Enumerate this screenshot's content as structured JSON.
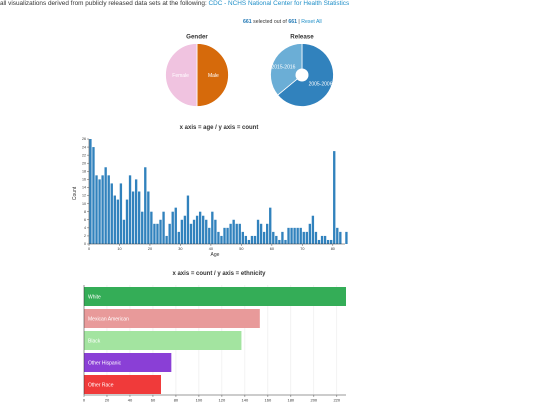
{
  "header": {
    "intro_text": "all visualizations derived from publicly released data sets at the following:",
    "source_link": "CDC - NCHS National Center for Health Statistics"
  },
  "selection": {
    "selected": "661",
    "middle_text": "selected out of",
    "total": "661",
    "separator": "|",
    "reset_label": "Reset All"
  },
  "colors": {
    "male": "#d66a0b",
    "female": "#f0c3e0",
    "release_2005": "#3182bd",
    "release_2015": "#6baed6",
    "bars": "#3182bd",
    "white": "#34ad57",
    "mexican_american": "#e89a9a",
    "black": "#a3e4a0",
    "other_hispanic": "#8a3fd6",
    "other_race": "#f03a3a"
  },
  "chart_data": [
    {
      "type": "pie",
      "title": "Gender",
      "slices": [
        {
          "label": "Male",
          "value": 0.5
        },
        {
          "label": "Female",
          "value": 0.5
        }
      ]
    },
    {
      "type": "pie",
      "title": "Release",
      "donut": true,
      "slices": [
        {
          "label": "2005-2006",
          "value": 0.64
        },
        {
          "label": "2015-2016",
          "value": 0.36
        }
      ]
    },
    {
      "type": "bar",
      "title": "x axis = age / y axis = count",
      "xlabel": "Age",
      "ylabel": "Count",
      "xlim": [
        0,
        84
      ],
      "ylim": [
        0,
        26
      ],
      "xticks": [
        0,
        10,
        20,
        30,
        40,
        50,
        60,
        70,
        80
      ],
      "yticks": [
        0,
        2,
        4,
        6,
        8,
        10,
        12,
        14,
        16,
        18,
        20,
        22,
        24,
        26
      ],
      "x": [
        0,
        1,
        2,
        3,
        4,
        5,
        6,
        7,
        8,
        9,
        10,
        11,
        12,
        13,
        14,
        15,
        16,
        17,
        18,
        19,
        20,
        21,
        22,
        23,
        24,
        25,
        26,
        27,
        28,
        29,
        30,
        31,
        32,
        33,
        34,
        35,
        36,
        37,
        38,
        39,
        40,
        41,
        42,
        43,
        44,
        45,
        46,
        47,
        48,
        49,
        50,
        51,
        52,
        53,
        54,
        55,
        56,
        57,
        58,
        59,
        60,
        61,
        62,
        63,
        64,
        65,
        66,
        67,
        68,
        69,
        70,
        71,
        72,
        73,
        74,
        75,
        76,
        77,
        78,
        79,
        80,
        81,
        82,
        83,
        84
      ],
      "values": [
        26,
        24,
        17,
        16,
        17,
        19,
        17,
        15,
        12,
        11,
        15,
        6,
        11,
        17,
        13,
        16,
        13,
        8,
        19,
        13,
        8,
        5,
        5,
        6,
        8,
        2,
        5,
        8,
        9,
        3,
        6,
        7,
        12,
        5,
        6,
        7,
        8,
        7,
        6,
        4,
        8,
        6,
        3,
        2,
        4,
        4,
        5,
        6,
        5,
        5,
        3,
        2,
        1,
        2,
        2,
        6,
        5,
        3,
        5,
        9,
        3,
        2,
        1,
        3,
        1,
        4,
        4,
        4,
        4,
        4,
        3,
        3,
        5,
        7,
        3,
        1,
        2,
        2,
        1,
        1,
        23,
        4,
        3,
        0,
        3
      ]
    },
    {
      "type": "bar",
      "orientation": "horizontal",
      "title": "x axis = count / y axis = ethnicity",
      "categories": [
        "White",
        "Mexican American",
        "Black",
        "Other Hispanic",
        "Other Race"
      ],
      "values": [
        228,
        153,
        137,
        76,
        67
      ],
      "xlim": [
        0,
        228
      ],
      "xticks": [
        0,
        20,
        40,
        60,
        80,
        100,
        120,
        140,
        160,
        180,
        200,
        220
      ]
    }
  ]
}
